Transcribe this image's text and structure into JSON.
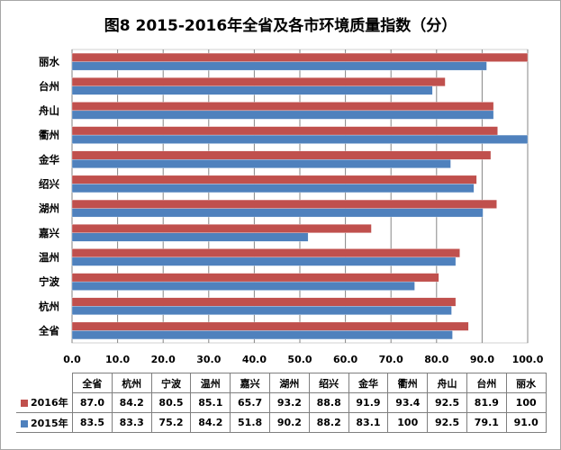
{
  "chart_data": {
    "type": "bar",
    "orientation": "horizontal",
    "title": "图8  2015-2016年全省及各市环境质量指数（分）",
    "categories": [
      "全省",
      "杭州",
      "宁波",
      "温州",
      "嘉兴",
      "湖州",
      "绍兴",
      "金华",
      "衢州",
      "舟山",
      "台州",
      "丽水"
    ],
    "series": [
      {
        "name": "2016年",
        "color": "#c0504d",
        "values": [
          87.0,
          84.2,
          80.5,
          85.1,
          65.7,
          93.2,
          88.8,
          91.9,
          93.4,
          92.5,
          81.9,
          100
        ]
      },
      {
        "name": "2015年",
        "color": "#4f81bd",
        "values": [
          83.5,
          83.3,
          75.2,
          84.2,
          51.8,
          90.2,
          88.2,
          83.1,
          100,
          92.5,
          79.1,
          91.0
        ]
      }
    ],
    "series_labels": [
      [
        "87.0",
        "84.2",
        "80.5",
        "85.1",
        "65.7",
        "93.2",
        "88.8",
        "91.9",
        "93.4",
        "92.5",
        "81.9",
        "100"
      ],
      [
        "83.5",
        "83.3",
        "75.2",
        "84.2",
        "51.8",
        "90.2",
        "88.2",
        "83.1",
        "100",
        "92.5",
        "79.1",
        "91.0"
      ]
    ],
    "xlim": [
      0,
      100
    ],
    "ticks": [
      "0.0",
      "10.0",
      "20.0",
      "30.0",
      "40.0",
      "50.0",
      "60.0",
      "70.0",
      "80.0",
      "90.0",
      "100.0"
    ],
    "grid": true,
    "legend": "data-table"
  }
}
